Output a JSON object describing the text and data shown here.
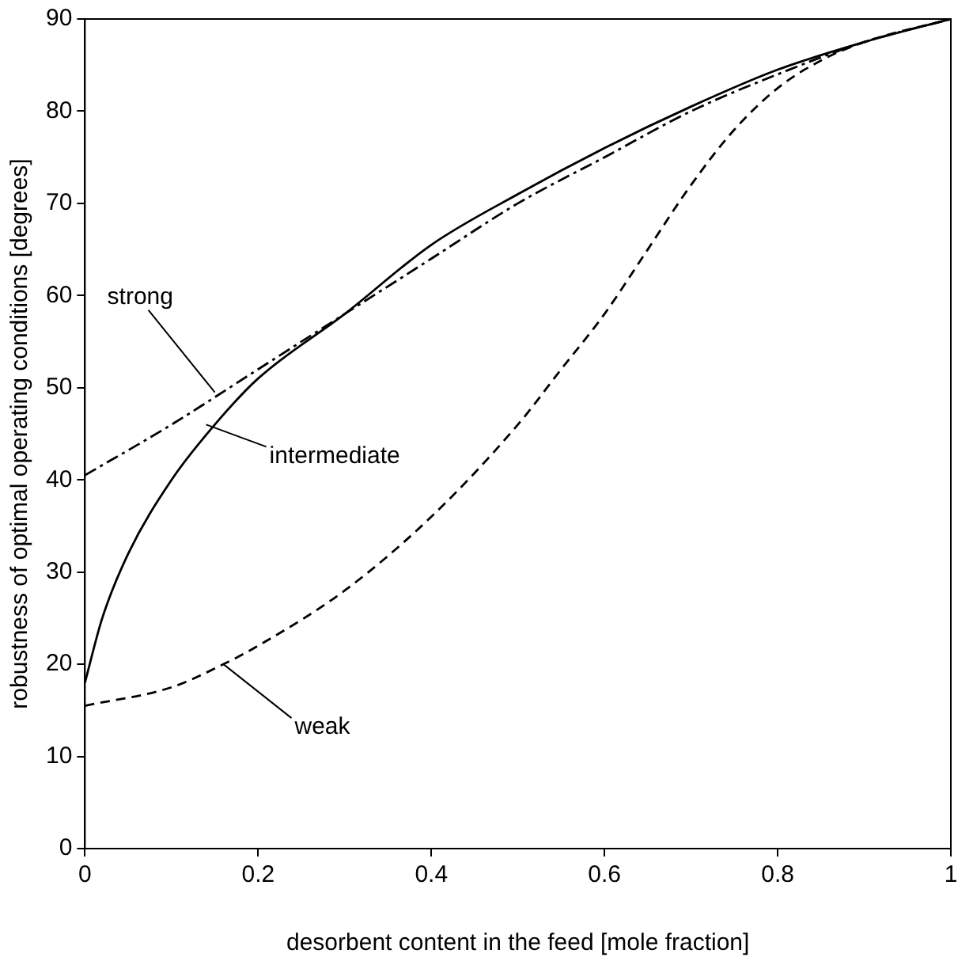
{
  "chart_data": {
    "type": "line",
    "xlabel": "desorbent content in the feed [mole fraction]",
    "ylabel": "robustness of optimal operating conditions [degrees]",
    "xlim": [
      0,
      1
    ],
    "xticks": [
      0,
      0.2,
      0.4,
      0.6,
      0.8,
      1
    ],
    "ylim": [
      0,
      90
    ],
    "yticks": [
      0,
      10,
      20,
      30,
      40,
      50,
      60,
      70,
      80,
      90
    ],
    "marker": "none",
    "legend": false,
    "series": [
      {
        "color": "#000000",
        "line_style": "dashed",
        "x": [
          0,
          0.1,
          0.16,
          0.2,
          0.3,
          0.4,
          0.5,
          0.55,
          0.6,
          0.65,
          0.7,
          0.75,
          0.8,
          0.85,
          0.9,
          1
        ],
        "values": [
          15.5,
          17.5,
          20,
          22,
          28,
          36,
          46,
          52,
          58,
          65,
          72,
          78,
          82.5,
          85.5,
          87.5,
          90
        ]
      },
      {
        "color": "#000000",
        "line_style": "solid",
        "x": [
          0,
          0.02,
          0.05,
          0.1,
          0.15,
          0.2,
          0.3,
          0.4,
          0.5,
          0.6,
          0.7,
          0.8,
          0.9,
          1
        ],
        "values": [
          18,
          25,
          32,
          40,
          46,
          51,
          58,
          65.5,
          71,
          76,
          80.5,
          84.5,
          87.5,
          90
        ]
      },
      {
        "color": "#000000",
        "line_style": "dotted",
        "x": [
          0,
          0.1,
          0.2,
          0.3,
          0.4,
          0.5,
          0.6,
          0.7,
          0.8,
          0.9,
          1
        ],
        "values": [
          40.5,
          46,
          52,
          58,
          64,
          70,
          75,
          80,
          84,
          87.5,
          90
        ]
      }
    ],
    "annotations": [
      {
        "text": "strong",
        "x": 0.15,
        "y": 49.5
      },
      {
        "text": "intermediate",
        "x": 0.14,
        "y": 46
      },
      {
        "text": "weak",
        "x": 0.16,
        "y": 20
      }
    ]
  }
}
